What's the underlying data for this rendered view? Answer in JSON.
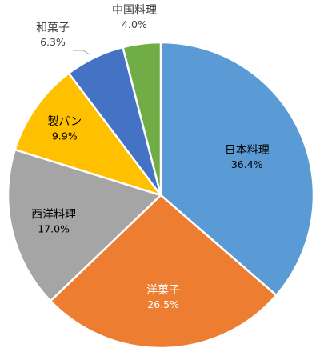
{
  "chart_data": {
    "type": "pie",
    "title": "",
    "start_angle_deg": 0,
    "direction": "clockwise",
    "slices": [
      {
        "label": "日本料理",
        "value": 36.4,
        "value_label": "36.4%",
        "color": "#5b9bd5",
        "text_color": "#000000"
      },
      {
        "label": "洋菓子",
        "value": 26.5,
        "value_label": "26.5%",
        "color": "#ed7d31",
        "text_color": "#ffffff"
      },
      {
        "label": "西洋料理",
        "value": 17.0,
        "value_label": "17.0%",
        "color": "#a5a5a5",
        "text_color": "#000000"
      },
      {
        "label": "製パン",
        "value": 9.9,
        "value_label": "9.9%",
        "color": "#ffc000",
        "text_color": "#000000"
      },
      {
        "label": "和菓子",
        "value": 6.3,
        "value_label": "6.3%",
        "color": "#4472c4",
        "text_color": "#404040"
      },
      {
        "label": "中国料理",
        "value": 4.0,
        "value_label": "4.0%",
        "color": "#70ad47",
        "text_color": "#404040"
      }
    ]
  }
}
